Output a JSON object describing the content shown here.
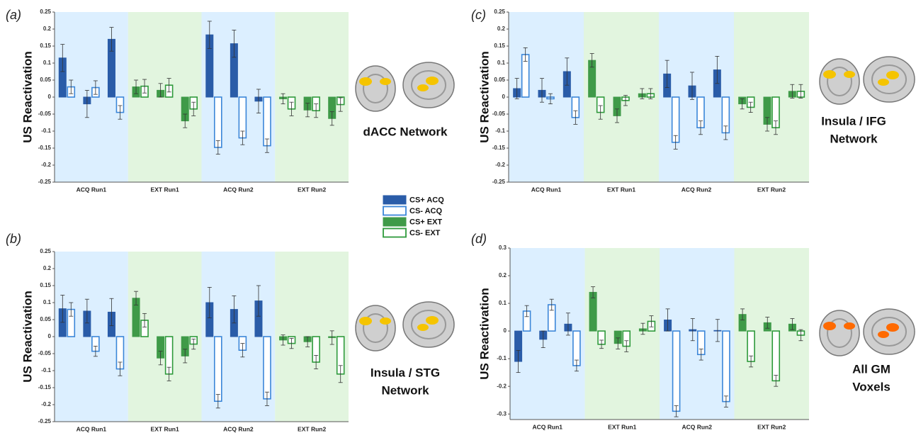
{
  "chart_data": [
    {
      "type": "bar",
      "panel_label": "(a)",
      "ylabel": "US Reactivation",
      "note": [
        "dACC Network"
      ],
      "ylim": [
        -0.25,
        0.25
      ],
      "yticks": [
        -0.25,
        -0.2,
        -0.15,
        -0.1,
        -0.05,
        0,
        0.05,
        0.1,
        0.15,
        0.2,
        0.25
      ],
      "categories": [
        null,
        "ACQ Run1",
        null,
        null,
        "EXT Run1",
        null,
        null,
        "ACQ Run2",
        null,
        null,
        "EXT Run2",
        null
      ],
      "series": [
        {
          "values": [
            0.115,
            -0.02,
            0.17,
            null,
            null,
            null,
            0.183,
            0.157,
            -0.012,
            null,
            null,
            null
          ],
          "errors": [
            0.04,
            0.04,
            0.035,
            null,
            null,
            null,
            0.04,
            0.04,
            0.035,
            null,
            null,
            null
          ]
        },
        {
          "values": [
            0.03,
            0.028,
            -0.045,
            null,
            null,
            null,
            -0.148,
            -0.12,
            -0.143,
            null,
            null,
            null
          ],
          "errors": [
            0.02,
            0.02,
            0.02,
            null,
            null,
            null,
            0.02,
            0.02,
            0.02,
            null,
            null,
            null
          ]
        },
        {
          "values": [
            null,
            null,
            null,
            0.03,
            0.02,
            -0.07,
            null,
            null,
            null,
            -0.005,
            -0.038,
            -0.063
          ],
          "errors": [
            null,
            null,
            null,
            0.02,
            0.02,
            0.02,
            null,
            null,
            null,
            0.015,
            0.02,
            0.02
          ]
        },
        {
          "values": [
            null,
            null,
            null,
            0.032,
            0.035,
            -0.035,
            null,
            null,
            null,
            -0.035,
            -0.04,
            -0.022
          ],
          "errors": [
            null,
            null,
            null,
            0.02,
            0.02,
            0.02,
            null,
            null,
            null,
            0.02,
            0.02,
            0.02
          ]
        }
      ]
    },
    {
      "type": "bar",
      "panel_label": "(b)",
      "ylabel": "US Reactivation",
      "note": [
        "Insula / STG",
        "Network"
      ],
      "ylim": [
        -0.25,
        0.25
      ],
      "yticks": [
        -0.25,
        -0.2,
        -0.15,
        -0.1,
        -0.05,
        0,
        0.05,
        0.1,
        0.15,
        0.2,
        0.25
      ],
      "categories": [
        null,
        "ACQ Run1",
        null,
        null,
        "EXT Run1",
        null,
        null,
        "ACQ Run2",
        null,
        null,
        "EXT Run2",
        null
      ],
      "series": [
        {
          "values": [
            0.082,
            0.075,
            0.072,
            null,
            null,
            null,
            0.1,
            0.08,
            0.105,
            null,
            null,
            null
          ],
          "errors": [
            0.04,
            0.035,
            0.04,
            null,
            null,
            null,
            0.045,
            0.04,
            0.045,
            null,
            null,
            null
          ]
        },
        {
          "values": [
            0.08,
            -0.043,
            -0.095,
            null,
            null,
            null,
            -0.19,
            -0.04,
            -0.183,
            null,
            null,
            null
          ],
          "errors": [
            0.02,
            0.015,
            0.02,
            null,
            null,
            null,
            0.02,
            0.02,
            0.02,
            null,
            null,
            null
          ]
        },
        {
          "values": [
            null,
            null,
            null,
            0.113,
            -0.063,
            -0.057,
            null,
            null,
            null,
            -0.01,
            -0.015,
            -0.003
          ],
          "errors": [
            null,
            null,
            null,
            0.02,
            0.02,
            0.02,
            null,
            null,
            null,
            0.015,
            0.015,
            0.02
          ]
        },
        {
          "values": [
            null,
            null,
            null,
            0.048,
            -0.11,
            -0.022,
            null,
            null,
            null,
            -0.02,
            -0.075,
            -0.11
          ],
          "errors": [
            null,
            null,
            null,
            0.02,
            0.02,
            0.015,
            null,
            null,
            null,
            0.015,
            0.02,
            0.025
          ]
        }
      ]
    },
    {
      "type": "bar",
      "panel_label": "(c)",
      "ylabel": "US Reactivation",
      "note": [
        "Insula / IFG",
        "Network"
      ],
      "ylim": [
        -0.25,
        0.25
      ],
      "yticks": [
        -0.25,
        -0.2,
        -0.15,
        -0.1,
        -0.05,
        0,
        0.05,
        0.1,
        0.15,
        0.2,
        0.25
      ],
      "categories": [
        null,
        "ACQ Run1",
        null,
        null,
        "EXT Run1",
        null,
        null,
        "ACQ Run2",
        null,
        null,
        "EXT Run2",
        null
      ],
      "series": [
        {
          "values": [
            0.025,
            0.02,
            0.075,
            null,
            null,
            null,
            0.068,
            0.033,
            0.08,
            null,
            null,
            null
          ],
          "errors": [
            0.03,
            0.035,
            0.04,
            null,
            null,
            null,
            0.04,
            0.04,
            0.04,
            null,
            null,
            null
          ]
        },
        {
          "values": [
            0.125,
            -0.005,
            -0.06,
            null,
            null,
            null,
            -0.133,
            -0.09,
            -0.105,
            null,
            null,
            null
          ],
          "errors": [
            0.02,
            0.015,
            0.02,
            null,
            null,
            null,
            0.02,
            0.02,
            0.02,
            null,
            null,
            null
          ]
        },
        {
          "values": [
            null,
            null,
            null,
            0.108,
            -0.055,
            0.01,
            null,
            null,
            null,
            -0.02,
            -0.08,
            0.017
          ],
          "errors": [
            null,
            null,
            null,
            0.02,
            0.02,
            0.015,
            null,
            null,
            null,
            0.015,
            0.02,
            0.02
          ]
        },
        {
          "values": [
            null,
            null,
            null,
            -0.045,
            -0.01,
            0.01,
            null,
            null,
            null,
            -0.03,
            -0.09,
            0.017
          ],
          "errors": [
            null,
            null,
            null,
            0.02,
            0.015,
            0.015,
            null,
            null,
            null,
            0.015,
            0.02,
            0.02
          ]
        }
      ]
    },
    {
      "type": "bar",
      "panel_label": "(d)",
      "ylabel": "US Reactivation",
      "note": [
        "All GM",
        "Voxels"
      ],
      "ylim": [
        -0.32,
        0.3
      ],
      "yticks": [
        -0.3,
        -0.2,
        -0.1,
        0,
        0.1,
        0.2,
        0.3
      ],
      "categories": [
        null,
        "ACQ Run1",
        null,
        null,
        "EXT Run1",
        null,
        null,
        "ACQ Run2",
        null,
        null,
        "EXT Run2",
        null
      ],
      "series": [
        {
          "values": [
            -0.11,
            -0.03,
            0.025,
            null,
            null,
            null,
            0.04,
            0.005,
            0.002,
            null,
            null,
            null
          ],
          "errors": [
            0.04,
            0.03,
            0.04,
            null,
            null,
            null,
            0.04,
            0.04,
            0.04,
            null,
            null,
            null
          ]
        },
        {
          "values": [
            0.072,
            0.095,
            -0.125,
            null,
            null,
            null,
            -0.29,
            -0.085,
            -0.255,
            null,
            null,
            null
          ],
          "errors": [
            0.02,
            0.02,
            0.02,
            null,
            null,
            null,
            0.02,
            0.02,
            0.02,
            null,
            null,
            null
          ]
        },
        {
          "values": [
            null,
            null,
            null,
            0.14,
            -0.045,
            0.008,
            null,
            null,
            null,
            0.06,
            0.03,
            0.025
          ],
          "errors": [
            null,
            null,
            null,
            0.02,
            0.02,
            0.02,
            null,
            null,
            null,
            0.02,
            0.02,
            0.02
          ]
        },
        {
          "values": [
            null,
            null,
            null,
            -0.048,
            -0.055,
            0.035,
            null,
            null,
            null,
            -0.11,
            -0.18,
            -0.015
          ],
          "errors": [
            null,
            null,
            null,
            0.015,
            0.02,
            0.02,
            null,
            null,
            null,
            0.02,
            0.02,
            0.02
          ]
        }
      ]
    }
  ],
  "legend": [
    {
      "name": "CS+ ACQ",
      "color": "#2a5ca8",
      "filled": true
    },
    {
      "name": "CS- ACQ",
      "color": "#3b86d8",
      "filled": false
    },
    {
      "name": "CS+ EXT",
      "color": "#3f9a48",
      "filled": true
    },
    {
      "name": "CS- EXT",
      "color": "#2e9a3b",
      "filled": false
    }
  ]
}
